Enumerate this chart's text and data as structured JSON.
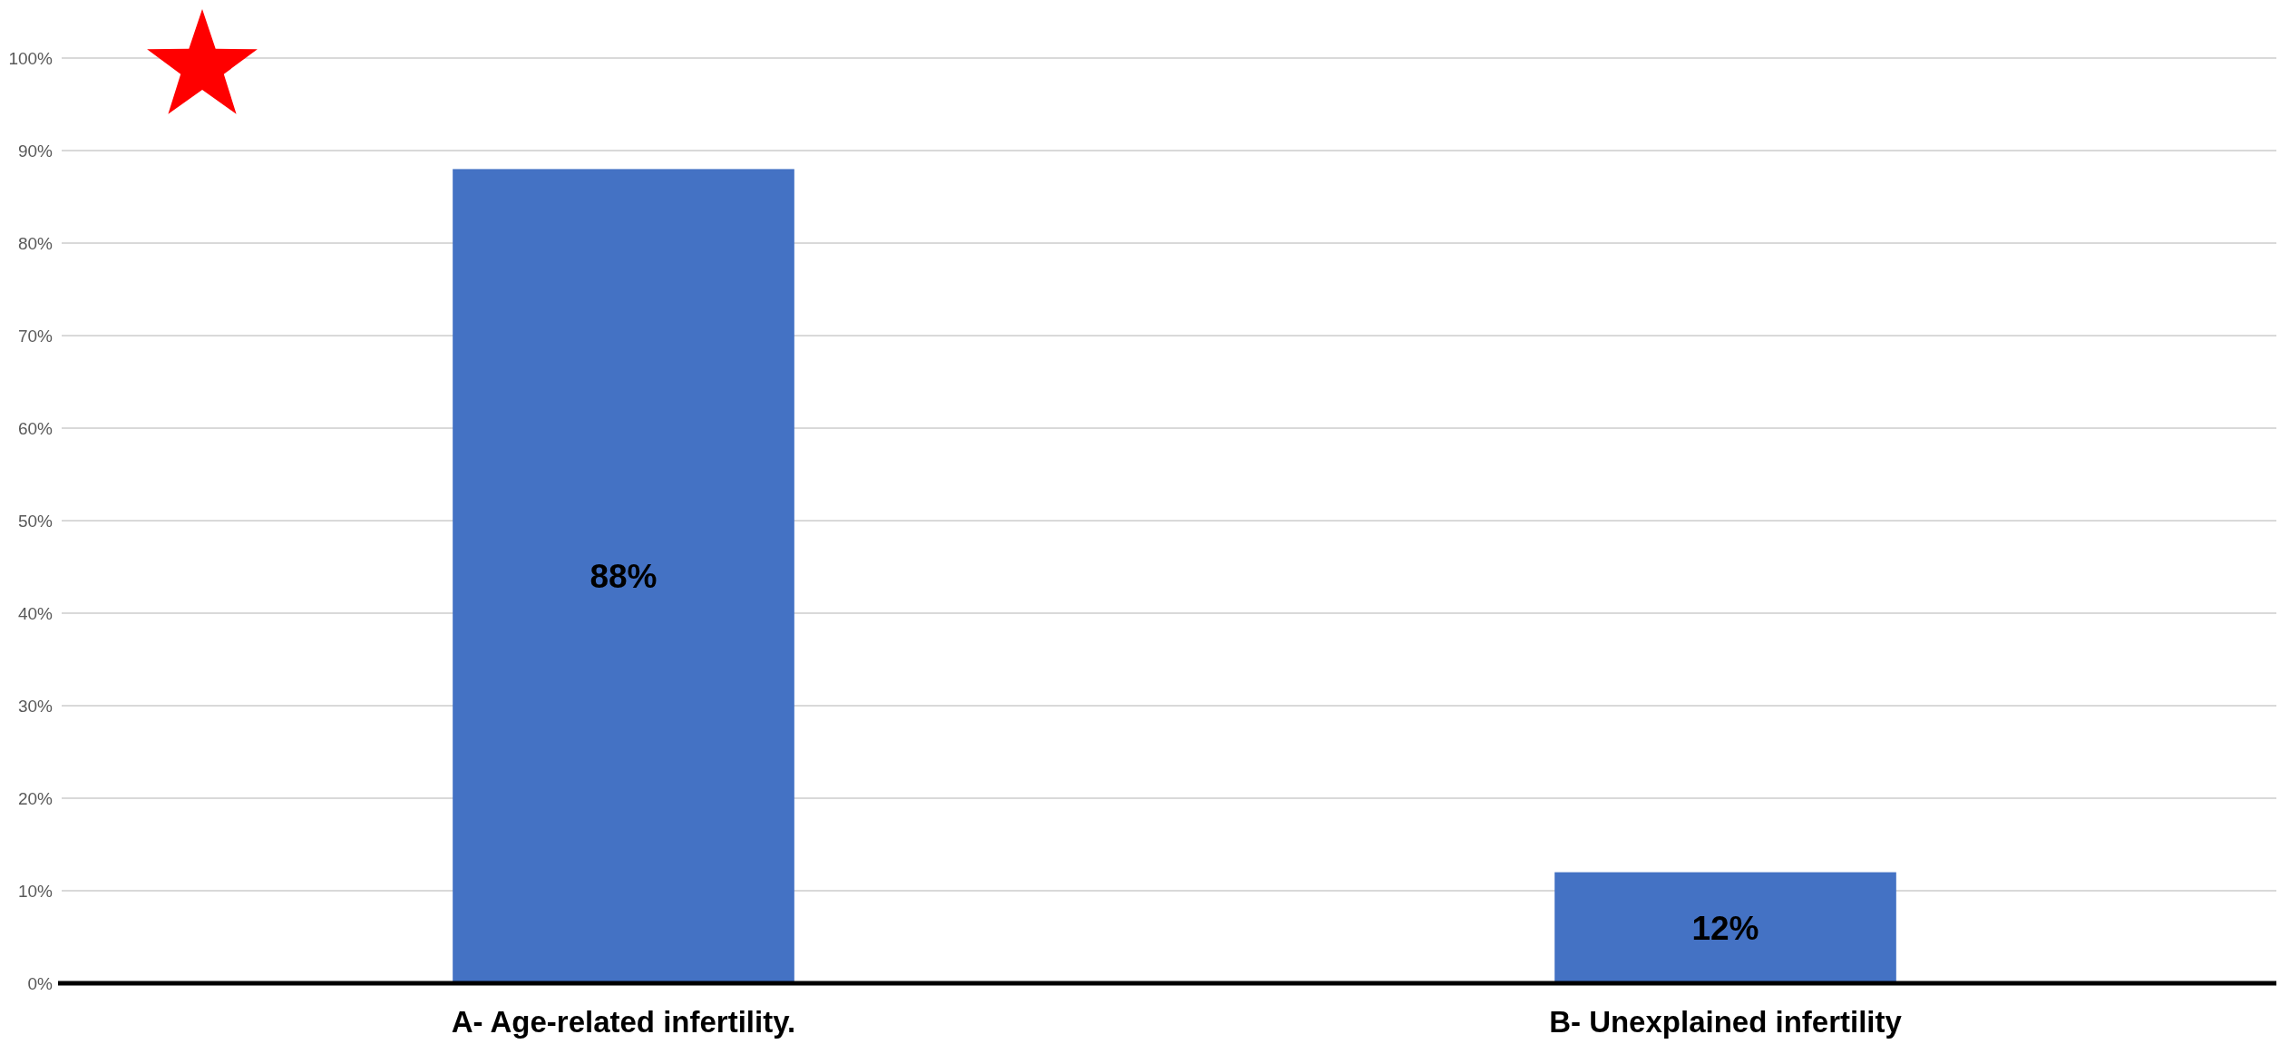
{
  "chart_data": {
    "type": "bar",
    "categories": [
      "A- Age-related infertility.",
      "B- Unexplained infertility"
    ],
    "values": [
      88,
      12
    ],
    "color": "#4472c4",
    "value_labels": [
      "88%",
      "12%"
    ],
    "ylim": [
      0,
      100
    ],
    "yticks": [
      {
        "value": 0,
        "label": "0%"
      },
      {
        "value": 10,
        "label": "10%"
      },
      {
        "value": 20,
        "label": "20%"
      },
      {
        "value": 30,
        "label": "30%"
      },
      {
        "value": 40,
        "label": "40%"
      },
      {
        "value": 50,
        "label": "50%"
      },
      {
        "value": 60,
        "label": "60%"
      },
      {
        "value": 70,
        "label": "70%"
      },
      {
        "value": 80,
        "label": "80%"
      },
      {
        "value": 90,
        "label": "90%"
      },
      {
        "value": 100,
        "label": "100%"
      }
    ],
    "grid": "y"
  }
}
